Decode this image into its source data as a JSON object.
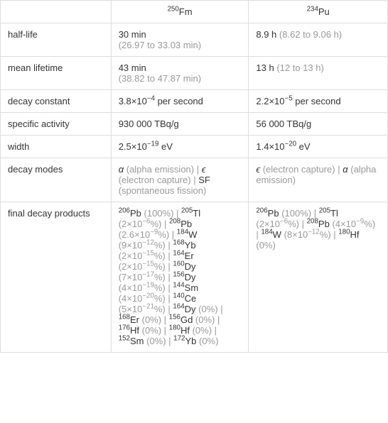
{
  "headers": {
    "col1_mass": "250",
    "col1_symbol": "Fm",
    "col2_mass": "234",
    "col2_symbol": "Pu"
  },
  "rows": {
    "half_life": {
      "label": "half-life",
      "col1_main": "30 min",
      "col1_sub": "(26.97 to 33.03 min)",
      "col2_main": "8.9 h",
      "col2_sub": "(8.62 to 9.06 h)"
    },
    "mean_lifetime": {
      "label": "mean lifetime",
      "col1_main": "43 min",
      "col1_sub": "(38.82 to 47.87 min)",
      "col2_main": "13 h",
      "col2_sub": "(12 to 13 h)"
    },
    "decay_constant": {
      "label": "decay constant",
      "col1_prefix": "3.8×10",
      "col1_exp": "−4",
      "col1_suffix": " per second",
      "col2_prefix": "2.2×10",
      "col2_exp": "−5",
      "col2_suffix": " per second"
    },
    "specific_activity": {
      "label": "specific activity",
      "col1": "930 000 TBq/g",
      "col2": "56 000 TBq/g"
    },
    "width": {
      "label": "width",
      "col1_prefix": "2.5×10",
      "col1_exp": "−19",
      "col1_suffix": " eV",
      "col2_prefix": "1.4×10",
      "col2_exp": "−20",
      "col2_suffix": " eV"
    },
    "decay_modes": {
      "label": "decay modes",
      "col1_a": "α",
      "col1_a_txt": " (alpha emission)",
      "col1_sep1": " | ",
      "col1_b": "ϵ",
      "col1_b_txt": " (electron capture)",
      "col1_sep2": " | ",
      "col1_c": "SF",
      "col1_c_txt": " (spontaneous fission)",
      "col2_a": "ϵ",
      "col2_a_txt": " (electron capture)",
      "col2_sep1": " | ",
      "col2_b": "α",
      "col2_b_txt": " (alpha emission)"
    },
    "final_decay_products": {
      "label": "final decay products"
    }
  },
  "fdp": {
    "col1": [
      {
        "mass": "206",
        "sym": "Pb",
        "pct": "(100%)"
      },
      {
        "mass": "205",
        "sym": "Tl",
        "pct_pre": "(2×10",
        "pct_exp": "−6",
        "pct_post": "%)"
      },
      {
        "mass": "208",
        "sym": "Pb",
        "pct_pre": "(2.6×10",
        "pct_exp": "−9",
        "pct_post": "%)"
      },
      {
        "mass": "184",
        "sym": "W",
        "pct_pre": "(9×10",
        "pct_exp": "−12",
        "pct_post": "%)"
      },
      {
        "mass": "168",
        "sym": "Yb",
        "pct_pre": "(2×10",
        "pct_exp": "−15",
        "pct_post": "%)"
      },
      {
        "mass": "164",
        "sym": "Er",
        "pct_pre": "(2×10",
        "pct_exp": "−15",
        "pct_post": "%)"
      },
      {
        "mass": "160",
        "sym": "Dy",
        "pct_pre": "(7×10",
        "pct_exp": "−17",
        "pct_post": "%)"
      },
      {
        "mass": "156",
        "sym": "Dy",
        "pct_pre": "(4×10",
        "pct_exp": "−19",
        "pct_post": "%)"
      },
      {
        "mass": "144",
        "sym": "Sm",
        "pct_pre": "(4×10",
        "pct_exp": "−20",
        "pct_post": "%)"
      },
      {
        "mass": "140",
        "sym": "Ce",
        "pct_pre": "(5×10",
        "pct_exp": "−21",
        "pct_post": "%)"
      },
      {
        "mass": "164",
        "sym": "Dy",
        "pct": "(0%)"
      },
      {
        "mass": "168",
        "sym": "Er",
        "pct": "(0%)"
      },
      {
        "mass": "156",
        "sym": "Gd",
        "pct": "(0%)"
      },
      {
        "mass": "176",
        "sym": "Hf",
        "pct": "(0%)"
      },
      {
        "mass": "180",
        "sym": "Hf",
        "pct": "(0%)"
      },
      {
        "mass": "152",
        "sym": "Sm",
        "pct": "(0%)"
      },
      {
        "mass": "172",
        "sym": "Yb",
        "pct": "(0%)"
      }
    ],
    "col2": [
      {
        "mass": "206",
        "sym": "Pb",
        "pct": "(100%)"
      },
      {
        "mass": "205",
        "sym": "Tl",
        "pct_pre": "(2×10",
        "pct_exp": "−6",
        "pct_post": "%)"
      },
      {
        "mass": "208",
        "sym": "Pb",
        "pct_pre": "(4×10",
        "pct_exp": "−9",
        "pct_post": "%)"
      },
      {
        "mass": "184",
        "sym": "W",
        "pct_pre": "(8×10",
        "pct_exp": "−12",
        "pct_post": "%)"
      },
      {
        "mass": "180",
        "sym": "Hf",
        "pct": "(0%)"
      }
    ]
  },
  "sep": " | "
}
